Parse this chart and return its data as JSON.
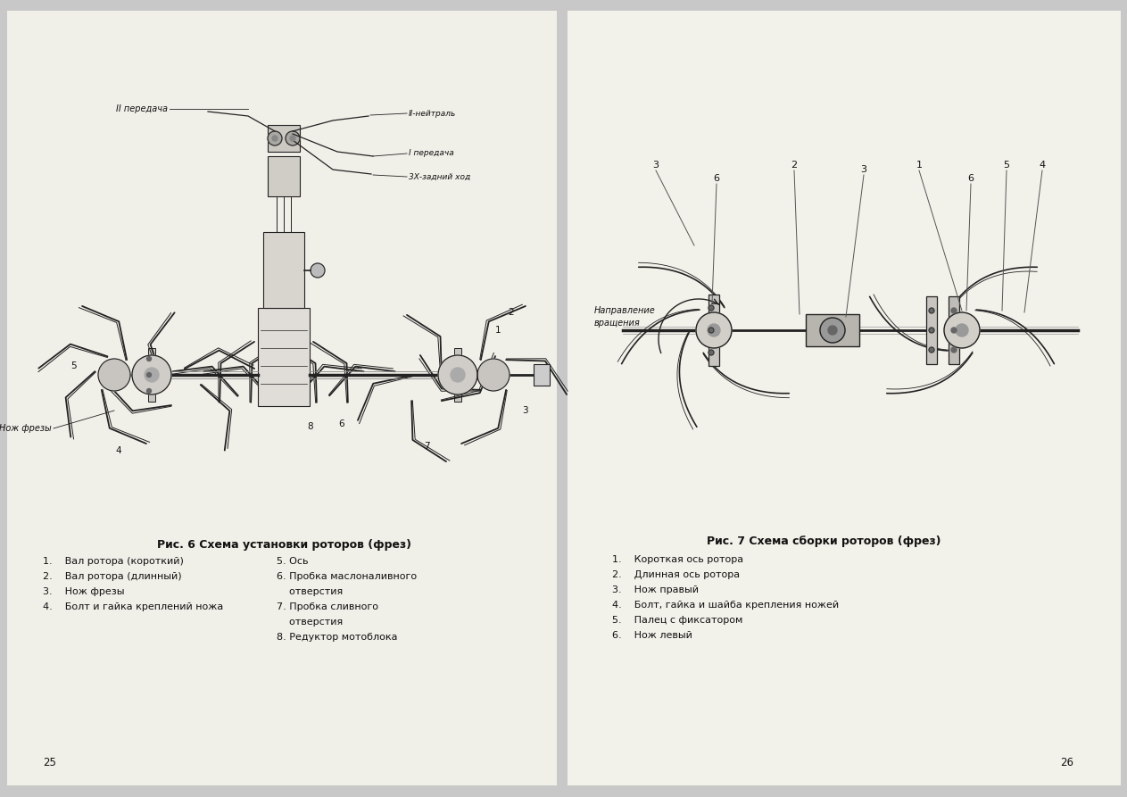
{
  "figsize": [
    12.63,
    8.93
  ],
  "dpi": 100,
  "bg_color": "#c8c8c8",
  "page_bg_left": "#f0efe8",
  "page_bg_right": "#f2f1ea",
  "left_page": {
    "page_number": "25",
    "fig_title": "Рис. 6 Схема установки роторов (фрез)",
    "legend_col1": [
      "1.    Вал ротора (короткий)",
      "2.    Вал ротора (длинный)",
      "3.    Нож фрезы",
      "4.    Болт и гайка креплений ножа"
    ],
    "legend_col2_lines": [
      "5. Ось",
      "6. Пробка маслоналивного",
      "    отверстия",
      "7. Пробка сливного",
      "    отверстия",
      "8. Редуктор мотоблока"
    ]
  },
  "right_page": {
    "page_number": "26",
    "fig_title": "Рис. 7 Схема сборки роторов (фрез)",
    "legend_lines": [
      "1.    Короткая ось ротора",
      "2.    Длинная ось ротора",
      "3.    Нож правый",
      "4.    Болт, гайка и шайба крепления ножей",
      "5.    Палец с фиксатором",
      "6.    Нож левый"
    ]
  }
}
